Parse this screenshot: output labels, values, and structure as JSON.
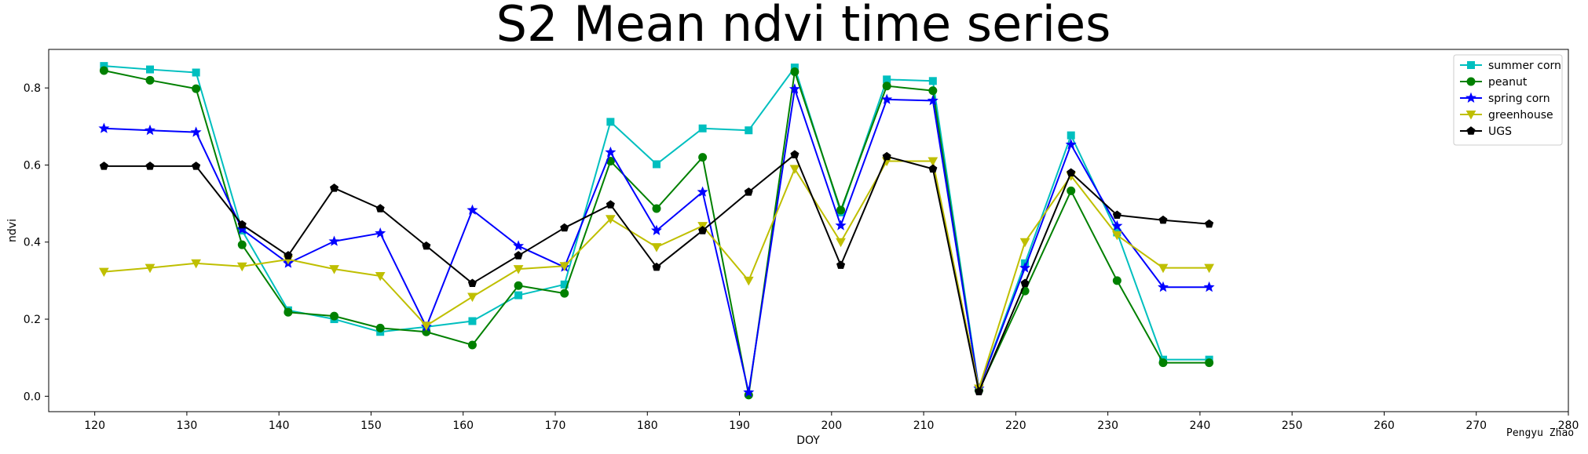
{
  "chart_data": {
    "type": "line",
    "title": "S2 Mean ndvi time series",
    "xlabel": "DOY",
    "ylabel": "ndvi",
    "xlim": [
      115,
      280
    ],
    "ylim": [
      -0.04,
      0.9
    ],
    "xticks": [
      120,
      130,
      140,
      150,
      160,
      170,
      180,
      190,
      200,
      210,
      220,
      230,
      240,
      250,
      260,
      270,
      280
    ],
    "yticks": [
      0.0,
      0.2,
      0.4,
      0.6,
      0.8
    ],
    "grid": false,
    "legend_position": "top-right",
    "credit": "Pengyu Zhao",
    "x": [
      121,
      126,
      131,
      136,
      141,
      146,
      151,
      156,
      161,
      166,
      171,
      176,
      181,
      186,
      191,
      196,
      201,
      206,
      211,
      216,
      221,
      226,
      231,
      236,
      241
    ],
    "series": [
      {
        "name": "summer corn",
        "color": "#00bfbf",
        "marker": "square",
        "values": [
          0.857,
          0.848,
          0.84,
          0.43,
          0.223,
          0.2,
          0.167,
          0.18,
          0.195,
          0.262,
          0.29,
          0.712,
          0.602,
          0.695,
          0.69,
          0.853,
          0.477,
          0.822,
          0.818,
          0.02,
          0.345,
          0.677,
          0.425,
          0.095,
          0.095
        ]
      },
      {
        "name": "peanut",
        "color": "#008000",
        "marker": "circle",
        "values": [
          0.845,
          0.82,
          0.798,
          0.393,
          0.218,
          0.208,
          0.177,
          0.167,
          0.133,
          0.287,
          0.267,
          0.61,
          0.487,
          0.62,
          0.003,
          0.842,
          0.483,
          0.805,
          0.793,
          0.015,
          0.273,
          0.533,
          0.3,
          0.087,
          0.087
        ]
      },
      {
        "name": "spring corn",
        "color": "#0000ff",
        "marker": "star",
        "values": [
          0.695,
          0.69,
          0.685,
          0.433,
          0.345,
          0.402,
          0.423,
          0.18,
          0.483,
          0.39,
          0.335,
          0.633,
          0.43,
          0.53,
          0.01,
          0.797,
          0.443,
          0.77,
          0.767,
          0.02,
          0.333,
          0.653,
          0.442,
          0.283,
          0.283
        ]
      },
      {
        "name": "greenhouse",
        "color": "#bfbf00",
        "marker": "triangle-down",
        "values": [
          0.323,
          0.333,
          0.345,
          0.337,
          0.355,
          0.33,
          0.312,
          0.183,
          0.258,
          0.33,
          0.338,
          0.46,
          0.387,
          0.442,
          0.3,
          0.59,
          0.4,
          0.61,
          0.61,
          0.02,
          0.4,
          0.572,
          0.418,
          0.333,
          0.333
        ]
      },
      {
        "name": "UGS",
        "color": "#000000",
        "marker": "pentagon",
        "values": [
          0.597,
          0.597,
          0.597,
          0.445,
          0.365,
          0.54,
          0.487,
          0.39,
          0.293,
          0.365,
          0.437,
          0.497,
          0.335,
          0.43,
          0.53,
          0.627,
          0.34,
          0.622,
          0.59,
          0.012,
          0.293,
          0.58,
          0.47,
          0.457,
          0.447
        ]
      }
    ]
  }
}
